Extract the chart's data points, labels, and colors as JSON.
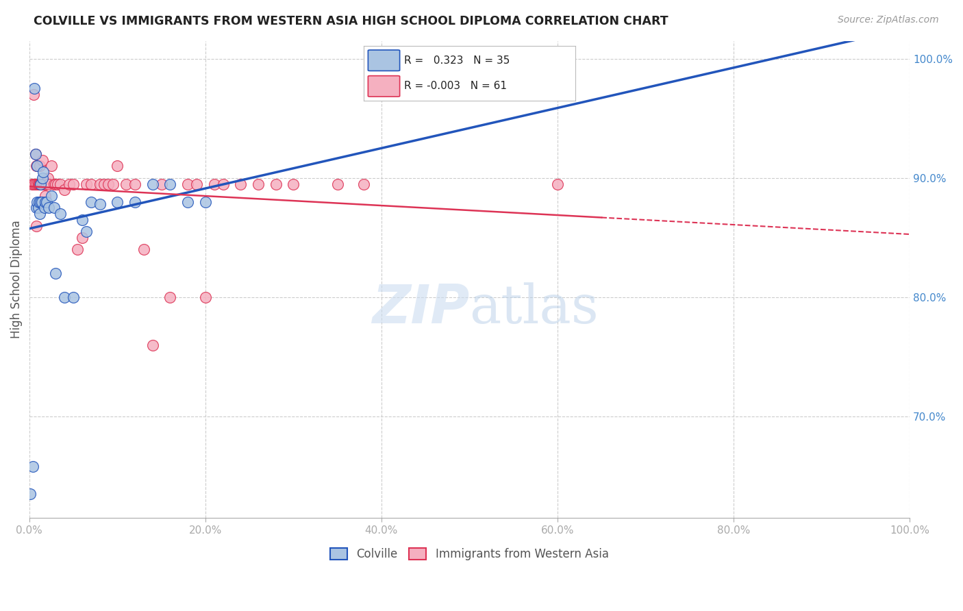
{
  "title": "COLVILLE VS IMMIGRANTS FROM WESTERN ASIA HIGH SCHOOL DIPLOMA CORRELATION CHART",
  "source": "Source: ZipAtlas.com",
  "ylabel": "High School Diploma",
  "legend_colville": "Colville",
  "legend_immigrants": "Immigrants from Western Asia",
  "r_colville": 0.323,
  "n_colville": 35,
  "r_immigrants": -0.003,
  "n_immigrants": 61,
  "colville_color": "#aac4e2",
  "immigrants_color": "#f5b0c0",
  "trend_colville_color": "#2255bb",
  "trend_immigrants_color": "#dd3355",
  "background_color": "#ffffff",
  "grid_color": "#cccccc",
  "right_axis_color": "#4488cc",
  "colville_x": [
    0.001,
    0.004,
    0.006,
    0.007,
    0.008,
    0.009,
    0.009,
    0.01,
    0.011,
    0.012,
    0.013,
    0.013,
    0.014,
    0.015,
    0.016,
    0.017,
    0.018,
    0.02,
    0.022,
    0.025,
    0.028,
    0.03,
    0.035,
    0.04,
    0.05,
    0.06,
    0.065,
    0.07,
    0.08,
    0.1,
    0.12,
    0.14,
    0.16,
    0.18,
    0.2
  ],
  "colville_y": [
    0.635,
    0.658,
    0.975,
    0.92,
    0.875,
    0.88,
    0.91,
    0.875,
    0.88,
    0.87,
    0.88,
    0.895,
    0.88,
    0.9,
    0.905,
    0.875,
    0.88,
    0.88,
    0.875,
    0.885,
    0.875,
    0.82,
    0.87,
    0.8,
    0.8,
    0.865,
    0.855,
    0.88,
    0.878,
    0.88,
    0.88,
    0.895,
    0.895,
    0.88,
    0.88
  ],
  "immigrants_x": [
    0.003,
    0.004,
    0.005,
    0.006,
    0.007,
    0.007,
    0.008,
    0.008,
    0.009,
    0.01,
    0.01,
    0.011,
    0.012,
    0.012,
    0.013,
    0.013,
    0.014,
    0.015,
    0.015,
    0.016,
    0.017,
    0.018,
    0.019,
    0.02,
    0.021,
    0.022,
    0.025,
    0.028,
    0.03,
    0.032,
    0.035,
    0.04,
    0.045,
    0.05,
    0.055,
    0.06,
    0.065,
    0.07,
    0.08,
    0.085,
    0.09,
    0.095,
    0.1,
    0.11,
    0.12,
    0.13,
    0.14,
    0.15,
    0.16,
    0.18,
    0.19,
    0.2,
    0.21,
    0.22,
    0.24,
    0.26,
    0.28,
    0.3,
    0.35,
    0.38,
    0.6
  ],
  "immigrants_y": [
    0.895,
    0.895,
    0.97,
    0.895,
    0.92,
    0.895,
    0.86,
    0.91,
    0.895,
    0.895,
    0.895,
    0.895,
    0.895,
    0.91,
    0.895,
    0.895,
    0.895,
    0.895,
    0.915,
    0.895,
    0.895,
    0.885,
    0.895,
    0.895,
    0.9,
    0.895,
    0.91,
    0.895,
    0.895,
    0.895,
    0.895,
    0.89,
    0.895,
    0.895,
    0.84,
    0.85,
    0.895,
    0.895,
    0.895,
    0.895,
    0.895,
    0.895,
    0.91,
    0.895,
    0.895,
    0.84,
    0.76,
    0.895,
    0.8,
    0.895,
    0.895,
    0.8,
    0.895,
    0.895,
    0.895,
    0.895,
    0.895,
    0.895,
    0.895,
    0.895,
    0.895
  ],
  "xlim": [
    0.0,
    1.0
  ],
  "ylim": [
    0.615,
    1.015
  ],
  "yticks": [
    0.7,
    0.8,
    0.9,
    1.0
  ],
  "ytick_labels": [
    "70.0%",
    "80.0%",
    "90.0%",
    "100.0%"
  ],
  "xtick_vals": [
    0.0,
    0.2,
    0.4,
    0.6,
    0.8,
    1.0
  ],
  "xtick_labels": [
    "0.0%",
    "20.0%",
    "40.0%",
    "60.0%",
    "80.0%",
    "100.0%"
  ]
}
